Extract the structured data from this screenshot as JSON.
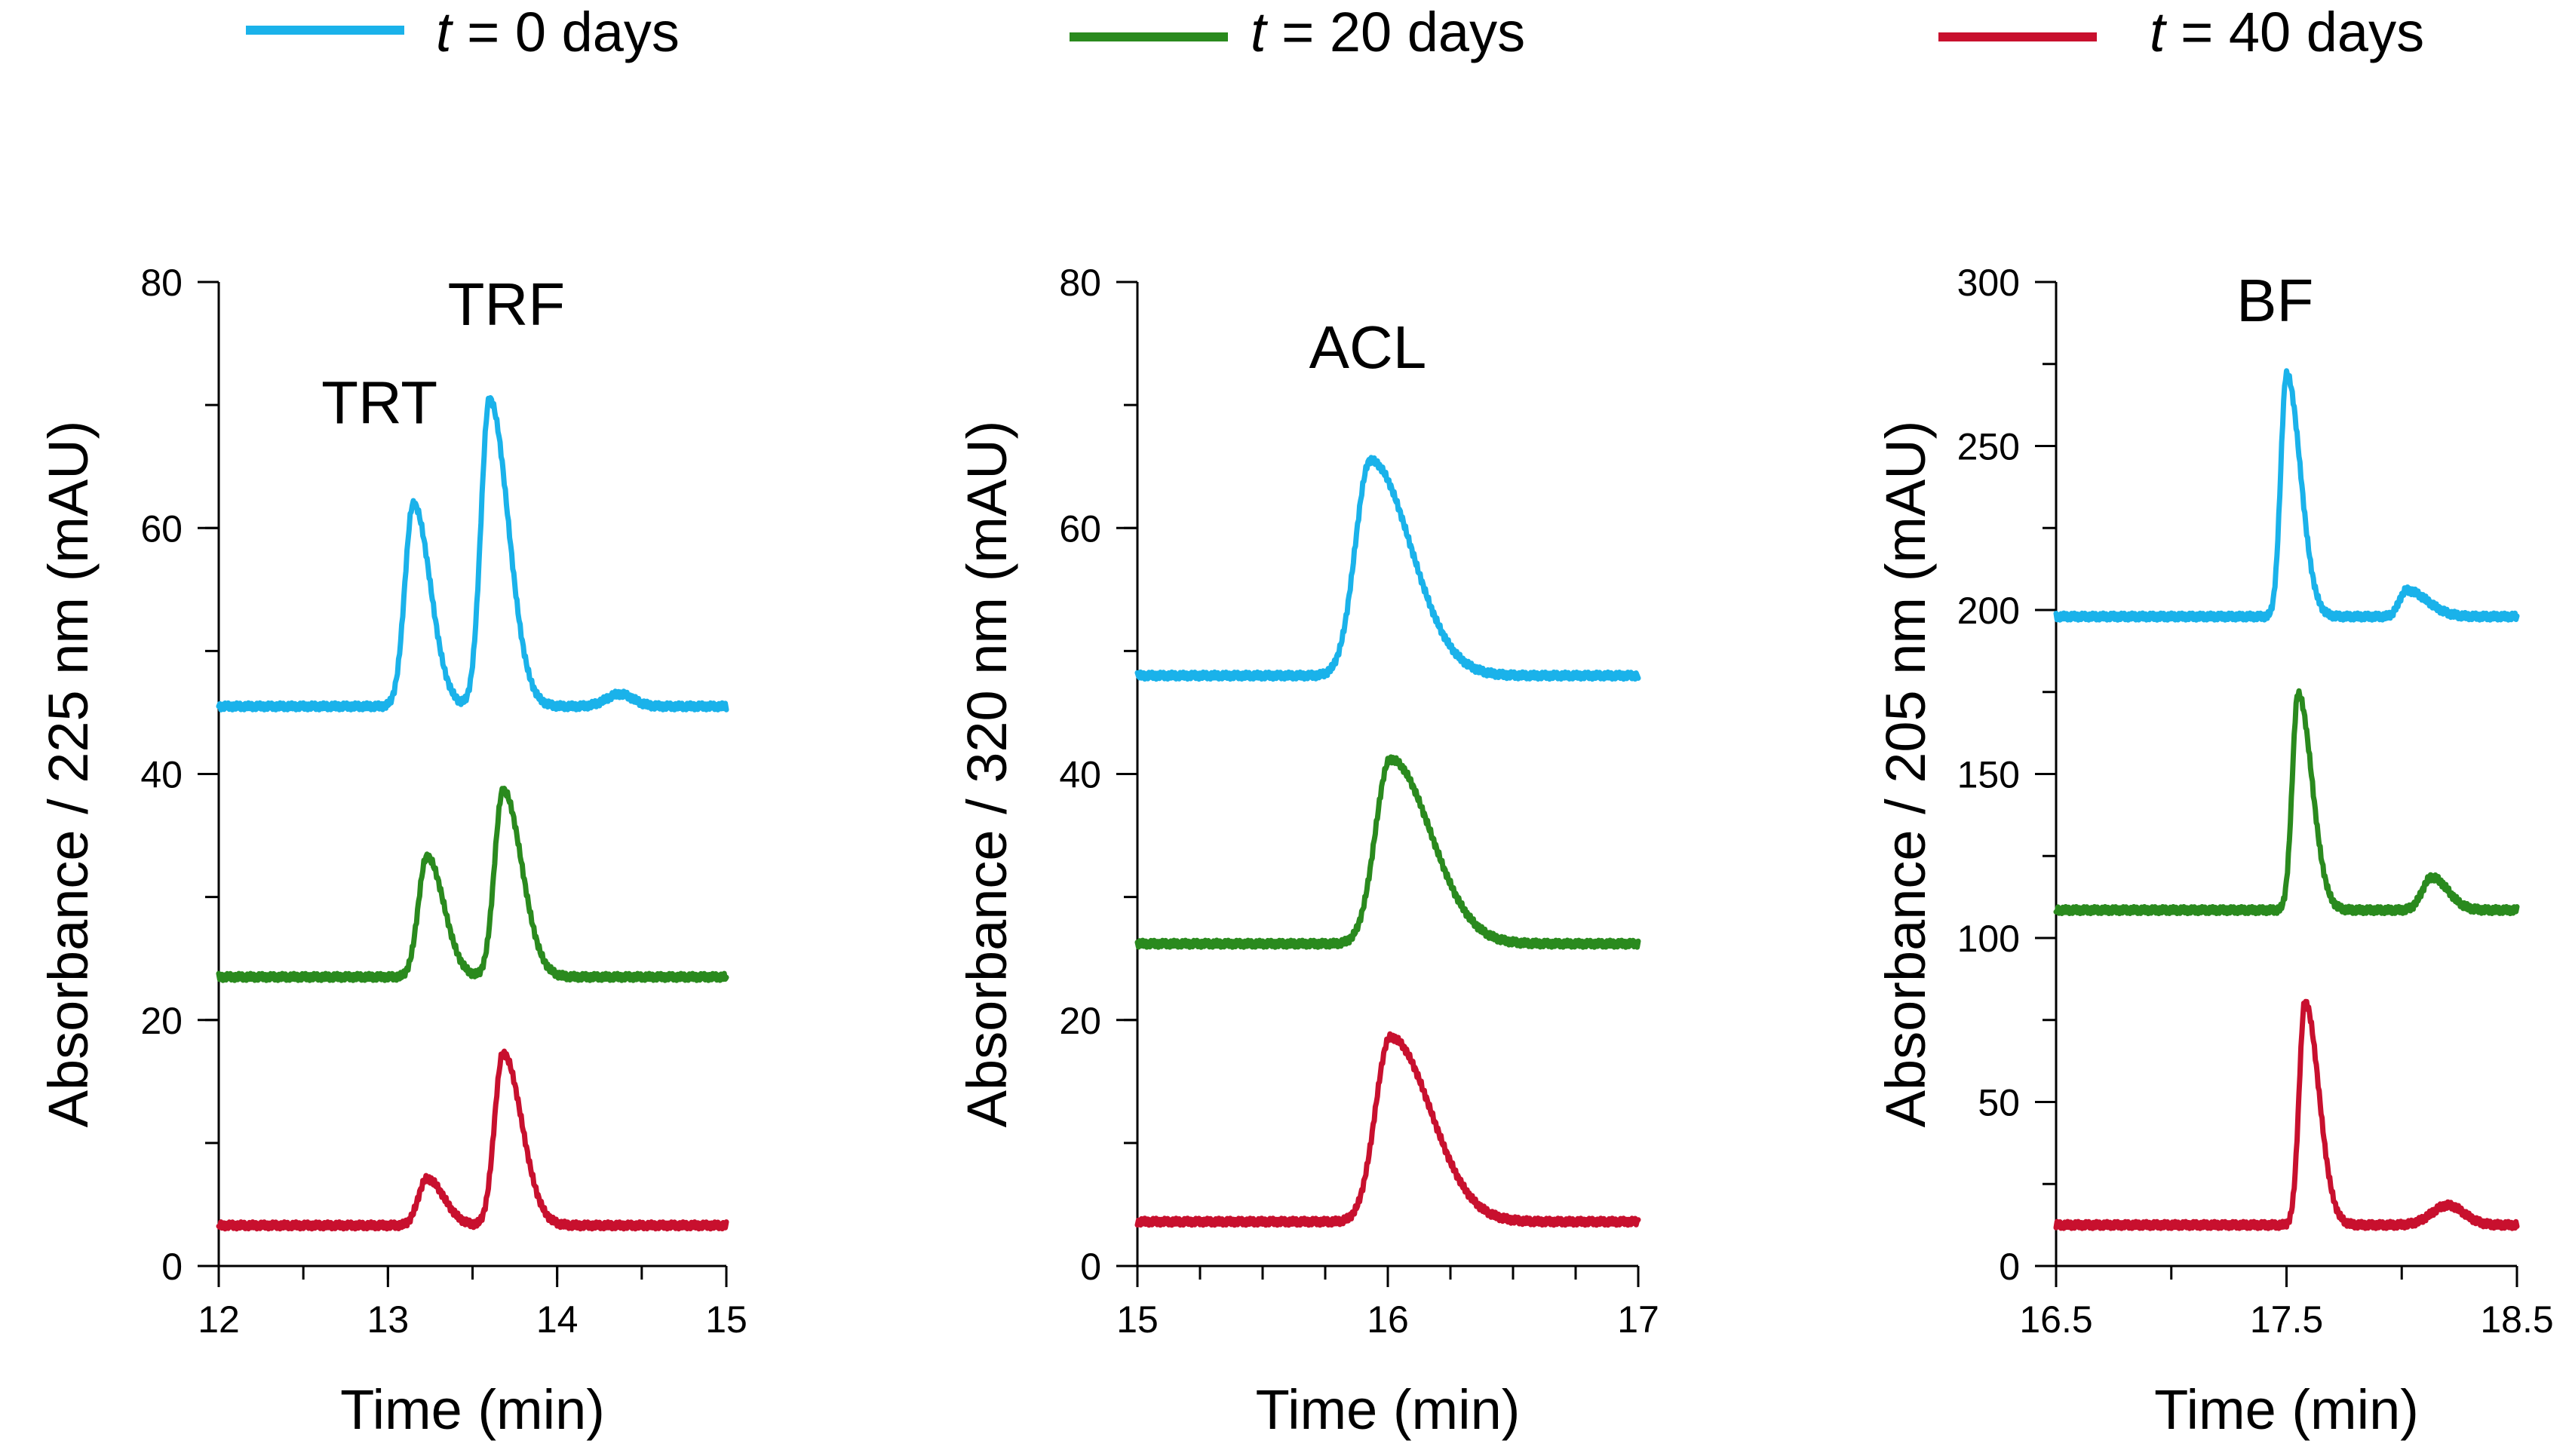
{
  "legend": {
    "items": [
      {
        "var": "t",
        "label": " = 0 days",
        "color": "#1ab2ea"
      },
      {
        "var": "t",
        "label": " = 20 days",
        "color": "#2a8a1e"
      },
      {
        "var": "t",
        "label": " = 40 days",
        "color": "#c8102e"
      }
    ]
  },
  "chart_data": [
    {
      "type": "line",
      "xlabel": "Time (min)",
      "ylabel": "Absorbance / 225 nm (mAU)",
      "xlim": [
        12,
        15
      ],
      "ylim": [
        0,
        80
      ],
      "xticks": [
        12,
        13,
        14,
        15
      ],
      "xtick_labels": [
        "12",
        "13",
        "14",
        "15"
      ],
      "yticks": [
        0,
        20,
        40,
        60,
        80
      ],
      "ytick_labels": [
        "0",
        "20",
        "40",
        "60",
        "80"
      ],
      "minor_x": 0.5,
      "minor_y": 10,
      "annotations": [
        {
          "text": "TRT",
          "x": 12.95,
          "y": 68.5
        },
        {
          "text": "TRF",
          "x": 13.7,
          "y": 76.5
        }
      ],
      "series": [
        {
          "name": "t = 0 days",
          "color": "#1ab2ea",
          "baseline": 45.5,
          "peaks": [
            {
              "center": 13.15,
              "height": 16.5,
              "sigma": 0.05,
              "tail": 0.05
            },
            {
              "center": 13.6,
              "height": 25.0,
              "sigma": 0.05,
              "tail": 0.06
            },
            {
              "center": 14.37,
              "height": 1.0,
              "sigma": 0.08,
              "tail": 0.0
            }
          ]
        },
        {
          "name": "t = 20 days",
          "color": "#2a8a1e",
          "baseline": 23.5,
          "peaks": [
            {
              "center": 13.23,
              "height": 9.8,
              "sigma": 0.05,
              "tail": 0.05
            },
            {
              "center": 13.68,
              "height": 15.2,
              "sigma": 0.05,
              "tail": 0.06
            }
          ]
        },
        {
          "name": "t = 40 days",
          "color": "#c8102e",
          "baseline": 3.3,
          "peaks": [
            {
              "center": 13.23,
              "height": 3.8,
              "sigma": 0.05,
              "tail": 0.05
            },
            {
              "center": 13.68,
              "height": 14.0,
              "sigma": 0.05,
              "tail": 0.06
            }
          ]
        }
      ]
    },
    {
      "type": "line",
      "xlabel": "Time (min)",
      "ylabel": "Absorbance / 320 nm (mAU)",
      "xlim": [
        15,
        17
      ],
      "ylim": [
        0,
        80
      ],
      "xticks": [
        15,
        16,
        17
      ],
      "xtick_labels": [
        "15",
        "16",
        "17"
      ],
      "yticks": [
        0,
        20,
        40,
        60,
        80
      ],
      "ytick_labels": [
        "0",
        "20",
        "40",
        "60",
        "80"
      ],
      "minor_x": 0.25,
      "minor_y": 10,
      "annotations": [
        {
          "text": "ACL",
          "x": 15.92,
          "y": 73.0
        }
      ],
      "series": [
        {
          "name": "t = 0 days",
          "color": "#1ab2ea",
          "baseline": 48.0,
          "peaks": [
            {
              "center": 15.93,
              "height": 17.5,
              "sigma": 0.06,
              "tail": 0.1
            }
          ]
        },
        {
          "name": "t = 20 days",
          "color": "#2a8a1e",
          "baseline": 26.2,
          "peaks": [
            {
              "center": 16.01,
              "height": 15.0,
              "sigma": 0.06,
              "tail": 0.1
            }
          ]
        },
        {
          "name": "t = 40 days",
          "color": "#c8102e",
          "baseline": 3.6,
          "peaks": [
            {
              "center": 16.01,
              "height": 15.0,
              "sigma": 0.06,
              "tail": 0.1
            }
          ]
        }
      ]
    },
    {
      "type": "line",
      "xlabel": "Time (min)",
      "ylabel": "Absorbance / 205 nm (mAU)",
      "xlim": [
        16.5,
        18.5
      ],
      "ylim": [
        0,
        300
      ],
      "xticks": [
        16.5,
        17.5,
        18.5
      ],
      "xtick_labels": [
        "16.5",
        "17.5",
        "18.5"
      ],
      "yticks": [
        0,
        50,
        100,
        150,
        200,
        250,
        300
      ],
      "ytick_labels": [
        "0",
        "50",
        "100",
        "150",
        "200",
        "250",
        "300"
      ],
      "minor_x": 0.5,
      "minor_y": 25,
      "annotations": [
        {
          "text": "BF",
          "x": 17.45,
          "y": 288.0
        }
      ],
      "series": [
        {
          "name": "t = 0 days",
          "color": "#1ab2ea",
          "baseline": 198.0,
          "peaks": [
            {
              "center": 17.5,
              "height": 74.0,
              "sigma": 0.025,
              "tail": 0.035
            },
            {
              "center": 18.02,
              "height": 8.0,
              "sigma": 0.03,
              "tail": 0.06
            }
          ]
        },
        {
          "name": "t = 20 days",
          "color": "#2a8a1e",
          "baseline": 108.5,
          "peaks": [
            {
              "center": 17.55,
              "height": 66.0,
              "sigma": 0.025,
              "tail": 0.035
            },
            {
              "center": 18.13,
              "height": 10.0,
              "sigma": 0.04,
              "tail": 0.03
            }
          ]
        },
        {
          "name": "t = 40 days",
          "color": "#c8102e",
          "baseline": 12.5,
          "peaks": [
            {
              "center": 17.58,
              "height": 68.0,
              "sigma": 0.025,
              "tail": 0.035
            },
            {
              "center": 18.2,
              "height": 6.0,
              "sigma": 0.07,
              "tail": 0.0
            }
          ]
        }
      ]
    }
  ]
}
